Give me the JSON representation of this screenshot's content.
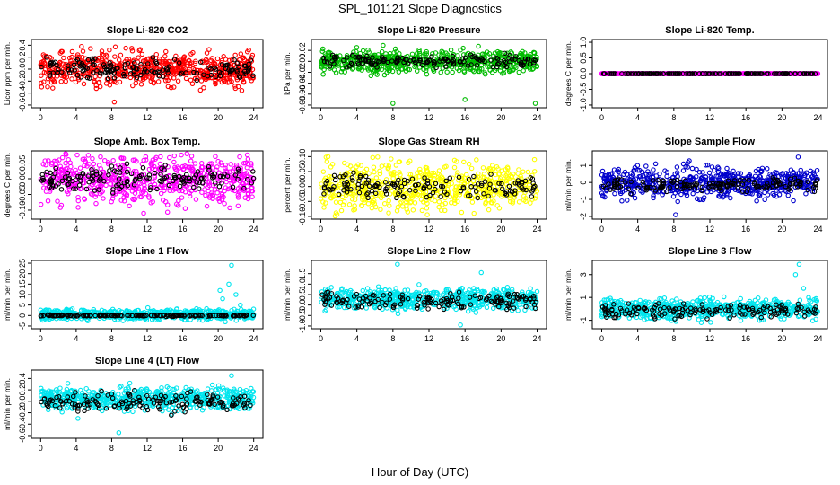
{
  "figure": {
    "title": "SPL_101121  Slope Diagnostics",
    "x_axis_title": "Hour of Day (UTC)"
  },
  "chart_data": [
    {
      "type": "scatter",
      "title": "Slope Li-820 CO2",
      "ylabel": "Licor ppm per min.",
      "xlim": [
        0,
        24
      ],
      "ylim": [
        -0.6,
        0.45
      ],
      "xticks": [
        0,
        4,
        8,
        12,
        16,
        20,
        24
      ],
      "yticks": [
        -0.6,
        -0.4,
        -0.2,
        0.0,
        0.2,
        0.4
      ],
      "ytick_labels": [
        "-0.6",
        "-0.4",
        "-0.2",
        "0.0",
        "0.2",
        "0.4"
      ],
      "series": [
        {
          "color": "#ff0000",
          "center": 0.0,
          "spread": 0.14,
          "outliers": [
            [
              8.3,
              -0.55
            ],
            [
              4.6,
              0.38
            ]
          ]
        },
        {
          "color": "#000000",
          "center": 0.0,
          "spread": 0.08,
          "outliers": []
        }
      ]
    },
    {
      "type": "scatter",
      "title": "Slope Li-820 Pressure",
      "ylabel": "kPa per min.",
      "xlim": [
        0,
        24
      ],
      "ylim": [
        -0.08,
        0.035
      ],
      "xticks": [
        0,
        4,
        8,
        12,
        16,
        20,
        24
      ],
      "yticks": [
        -0.08,
        -0.06,
        -0.04,
        -0.02,
        0.0,
        0.02
      ],
      "ytick_labels": [
        "-0.08",
        "-0.06",
        "-0.04",
        "-0.02",
        "0.00",
        "0.02"
      ],
      "series": [
        {
          "color": "#00bb00",
          "center": 0.0,
          "spread": 0.01,
          "outliers": [
            [
              8.0,
              -0.077
            ],
            [
              16.0,
              -0.07
            ],
            [
              23.8,
              -0.077
            ]
          ]
        },
        {
          "color": "#000000",
          "center": 0.0,
          "spread": 0.006,
          "outliers": []
        }
      ]
    },
    {
      "type": "scatter",
      "title": "Slope Li-820 Temp.",
      "ylabel": "degrees C per min.",
      "xlim": [
        0,
        24
      ],
      "ylim": [
        -1.0,
        1.0
      ],
      "xticks": [
        0,
        4,
        8,
        12,
        16,
        20,
        24
      ],
      "yticks": [
        -1.0,
        -0.5,
        0.0,
        0.5,
        1.0
      ],
      "ytick_labels": [
        "-1.0",
        "-0.5",
        "0.0",
        "0.5",
        "1.0"
      ],
      "series": [
        {
          "color": "#ff00ff",
          "center": 0.0,
          "spread": 0.0,
          "outliers": []
        },
        {
          "color": "#000000",
          "center": 0.0,
          "spread": 0.0,
          "outliers": []
        }
      ]
    },
    {
      "type": "scatter",
      "title": "Slope Amb. Box Temp.",
      "ylabel": "degrees C per min.",
      "xlim": [
        0,
        24
      ],
      "ylim": [
        -0.12,
        0.08
      ],
      "xticks": [
        0,
        4,
        8,
        12,
        16,
        20,
        24
      ],
      "yticks": [
        -0.1,
        -0.05,
        0.0,
        0.05
      ],
      "ytick_labels": [
        "-0.10",
        "-0.05",
        "0.00",
        "0.05"
      ],
      "series": [
        {
          "color": "#ff00ff",
          "center": 0.0,
          "spread": 0.04,
          "outliers": [
            [
              11.6,
              -0.11
            ],
            [
              13.5,
              0.07
            ]
          ]
        },
        {
          "color": "#000000",
          "center": 0.0,
          "spread": 0.02,
          "outliers": []
        }
      ]
    },
    {
      "type": "scatter",
      "title": "Slope Gas Stream RH",
      "ylabel": "percent per min.",
      "xlim": [
        0,
        24
      ],
      "ylim": [
        -0.1,
        0.11
      ],
      "xticks": [
        0,
        4,
        8,
        12,
        16,
        20,
        24
      ],
      "yticks": [
        -0.1,
        -0.05,
        0.0,
        0.05,
        0.1
      ],
      "ytick_labels": [
        "-0.10",
        "-0.05",
        "0.00",
        "0.05",
        "0.10"
      ],
      "series": [
        {
          "color": "#ffff00",
          "center": 0.0,
          "spread": 0.04,
          "outliers": [
            [
              0.8,
              0.1
            ],
            [
              17.0,
              -0.09
            ]
          ]
        },
        {
          "color": "#000000",
          "center": 0.0,
          "spread": 0.02,
          "outliers": []
        }
      ]
    },
    {
      "type": "scatter",
      "title": "Slope Sample Flow",
      "ylabel": "ml/min per min.",
      "xlim": [
        0,
        24
      ],
      "ylim": [
        -2.0,
        1.7
      ],
      "xticks": [
        0,
        4,
        8,
        12,
        16,
        20,
        24
      ],
      "yticks": [
        -2,
        -1,
        0,
        1
      ],
      "ytick_labels": [
        "-2",
        "-1",
        "0",
        "1"
      ],
      "series": [
        {
          "color": "#0000cc",
          "center": 0.0,
          "spread": 0.45,
          "outliers": [
            [
              8.2,
              -1.9
            ],
            [
              21.8,
              1.5
            ]
          ]
        },
        {
          "color": "#000000",
          "center": -0.15,
          "spread": 0.2,
          "outliers": []
        }
      ]
    },
    {
      "type": "scatter",
      "title": "Slope Line 1 Flow",
      "ylabel": "ml/min per min.",
      "xlim": [
        0,
        24
      ],
      "ylim": [
        -5,
        25
      ],
      "xticks": [
        0,
        4,
        8,
        12,
        16,
        20,
        24
      ],
      "yticks": [
        -5,
        0,
        5,
        10,
        15,
        20,
        25
      ],
      "ytick_labels": [
        "-5",
        "0",
        "5",
        "10",
        "15",
        "20",
        "25"
      ],
      "series": [
        {
          "color": "#00e5ee",
          "center": 0.5,
          "spread": 1.2,
          "outliers": [
            [
              20.5,
              8
            ],
            [
              21.2,
              15
            ],
            [
              21.5,
              24
            ],
            [
              22.0,
              10
            ],
            [
              20.8,
              -3
            ],
            [
              21.8,
              3
            ],
            [
              22.5,
              5
            ],
            [
              20.2,
              12
            ]
          ]
        },
        {
          "color": "#000000",
          "center": 0.0,
          "spread": 0.2,
          "outliers": []
        }
      ]
    },
    {
      "type": "scatter",
      "title": "Slope Line 2 Flow",
      "ylabel": "ml/min per min.",
      "xlim": [
        0,
        24
      ],
      "ylim": [
        -1.0,
        2.0
      ],
      "xticks": [
        0,
        4,
        8,
        12,
        16,
        20,
        24
      ],
      "yticks": [
        -1.0,
        -0.5,
        0.0,
        0.5,
        1.0,
        1.5
      ],
      "ytick_labels": [
        "-1.0",
        "-0.5",
        "0.0",
        "0.5",
        "1.0",
        "1.5"
      ],
      "series": [
        {
          "color": "#00e5ee",
          "center": 0.3,
          "spread": 0.25,
          "outliers": [
            [
              8.5,
              1.95
            ],
            [
              15.5,
              -0.95
            ],
            [
              17.8,
              1.55
            ]
          ]
        },
        {
          "color": "#000000",
          "center": 0.2,
          "spread": 0.2,
          "outliers": [
            [
              1.2,
              0.55
            ]
          ]
        }
      ]
    },
    {
      "type": "scatter",
      "title": "Slope Line 3 Flow",
      "ylabel": "ml/min per min.",
      "xlim": [
        0,
        24
      ],
      "ylim": [
        -1.5,
        4.0
      ],
      "xticks": [
        0,
        4,
        8,
        12,
        16,
        20,
        24
      ],
      "yticks": [
        -1,
        1,
        3
      ],
      "ytick_labels": [
        "-1",
        "1",
        "3"
      ],
      "series": [
        {
          "color": "#00e5ee",
          "center": 0.0,
          "spread": 0.45,
          "outliers": [
            [
              21.5,
              3.0
            ],
            [
              21.9,
              3.9
            ],
            [
              22.4,
              1.8
            ]
          ]
        },
        {
          "color": "#000000",
          "center": -0.2,
          "spread": 0.3,
          "outliers": []
        }
      ]
    },
    {
      "type": "scatter",
      "title": "Slope Line 4 (LT) Flow",
      "ylabel": "ml/min per min.",
      "xlim": [
        0,
        24
      ],
      "ylim": [
        -0.6,
        0.5
      ],
      "xticks": [
        0,
        4,
        8,
        12,
        16,
        20,
        24
      ],
      "yticks": [
        -0.6,
        -0.4,
        -0.2,
        0.0,
        0.2,
        0.4
      ],
      "ytick_labels": [
        "-0.6",
        "-0.4",
        "-0.2",
        "0.0",
        "0.2",
        "0.4"
      ],
      "series": [
        {
          "color": "#00e5ee",
          "center": 0.05,
          "spread": 0.1,
          "outliers": [
            [
              8.8,
              -0.55
            ],
            [
              21.5,
              0.45
            ],
            [
              4.2,
              -0.3
            ]
          ]
        },
        {
          "color": "#000000",
          "center": 0.0,
          "spread": 0.08,
          "outliers": []
        }
      ]
    }
  ]
}
